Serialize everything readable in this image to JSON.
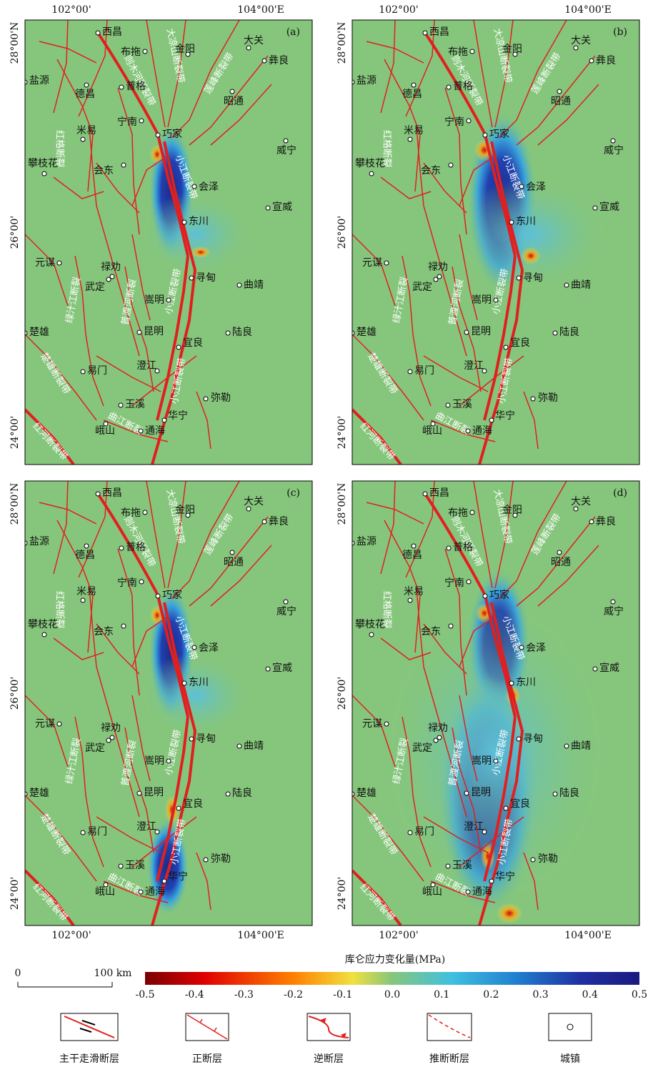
{
  "figure": {
    "panels": [
      {
        "label": "(a)"
      },
      {
        "label": "(b)"
      },
      {
        "label": "(c)"
      },
      {
        "label": "(d)"
      }
    ],
    "axes": {
      "top": [
        "102°00'",
        "104°00'E"
      ],
      "left": [
        "28°00'N",
        "26°00'",
        "24°00'"
      ],
      "bottom": [
        "102°00'",
        "104°00'E"
      ]
    },
    "towns": [
      {
        "name": "西昌"
      },
      {
        "name": "布拖"
      },
      {
        "name": "金阳"
      },
      {
        "name": "大关"
      },
      {
        "name": "彝良"
      },
      {
        "name": "盐源"
      },
      {
        "name": "德昌"
      },
      {
        "name": "普格"
      },
      {
        "name": "昭通"
      },
      {
        "name": "宁南"
      },
      {
        "name": "巧家"
      },
      {
        "name": "米易"
      },
      {
        "name": "威宁"
      },
      {
        "name": "攀枝花"
      },
      {
        "name": "会东"
      },
      {
        "name": "会泽"
      },
      {
        "name": "宣威"
      },
      {
        "name": "东川"
      },
      {
        "name": "元谋"
      },
      {
        "name": "禄劝"
      },
      {
        "name": "武定"
      },
      {
        "name": "寻甸"
      },
      {
        "name": "曲靖"
      },
      {
        "name": "嵩明"
      },
      {
        "name": "楚雄"
      },
      {
        "name": "昆明"
      },
      {
        "name": "陆良"
      },
      {
        "name": "宜良"
      },
      {
        "name": "易门"
      },
      {
        "name": "澄江"
      },
      {
        "name": "弥勒"
      },
      {
        "name": "玉溪"
      },
      {
        "name": "峨山"
      },
      {
        "name": "华宁"
      },
      {
        "name": "通海"
      }
    ],
    "faults": [
      {
        "name": "则木河断裂带"
      },
      {
        "name": "大凉山断裂带"
      },
      {
        "name": "莲峰断裂带"
      },
      {
        "name": "小江断裂带"
      },
      {
        "name": "红格断裂"
      },
      {
        "name": "绿汁江断裂"
      },
      {
        "name": "普渡河断裂"
      },
      {
        "name": "楚雄断裂带"
      },
      {
        "name": "曲江断裂"
      },
      {
        "name": "红河断裂带"
      }
    ],
    "colorbar": {
      "title": "库仑应力变化量(MPa)",
      "ticks": [
        "-0.5",
        "-0.4",
        "-0.3",
        "-0.2",
        "-0.1",
        "0.0",
        "0.1",
        "0.2",
        "0.3",
        "0.4",
        "0.5"
      ]
    },
    "scale_bar": {
      "start": "0",
      "end": "100 km"
    },
    "legend": [
      {
        "label": "主干走滑断层"
      },
      {
        "label": "正断层"
      },
      {
        "label": "逆断层"
      },
      {
        "label": "推断断层"
      },
      {
        "label": "城镇"
      }
    ]
  }
}
